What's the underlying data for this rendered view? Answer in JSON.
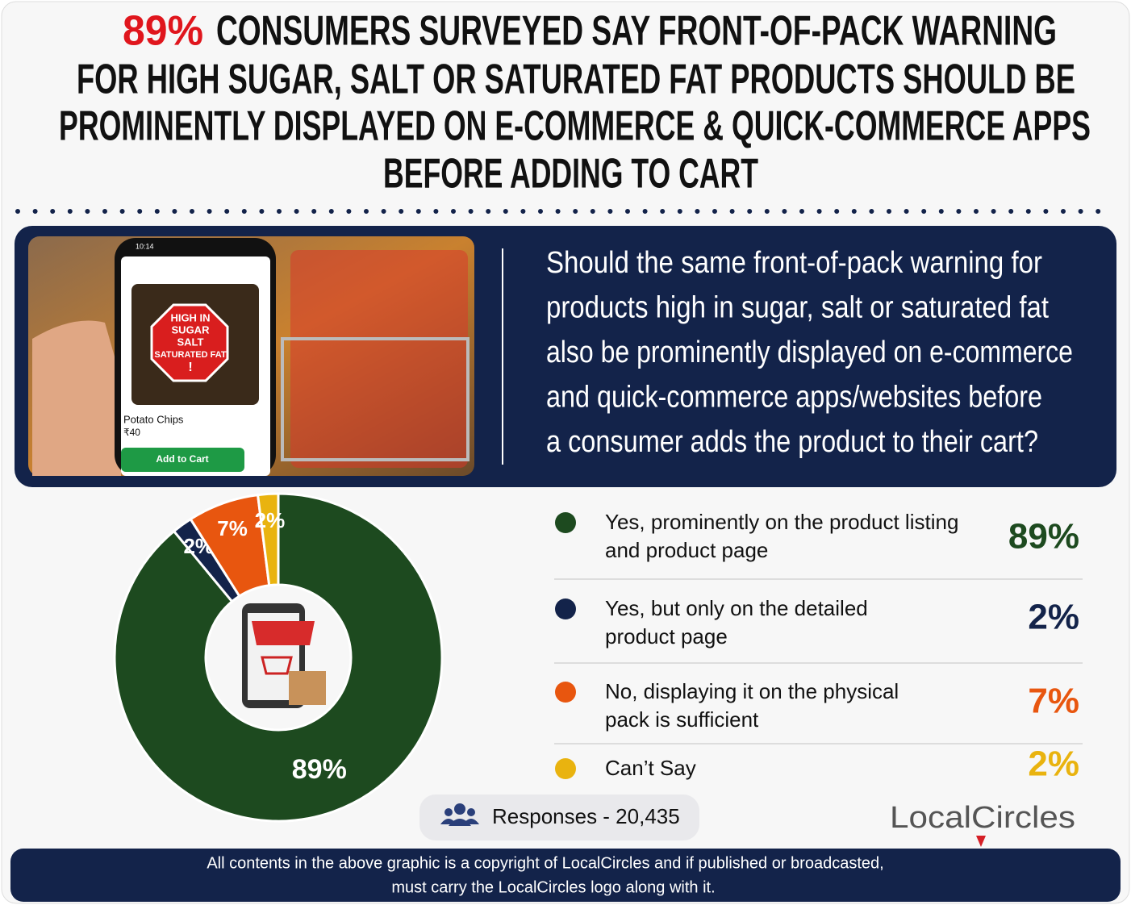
{
  "chart_data": {
    "type": "pie",
    "title_lead": "89%",
    "title_lines": [
      "CONSUMERS SURVEYED SAY FRONT-OF-PACK WARNING",
      "FOR HIGH SUGAR, SALT OR SATURATED FAT PRODUCTS SHOULD BE",
      "PROMINENTLY DISPLAYED ON E-COMMERCE & QUICK-COMMERCE APPS",
      "BEFORE ADDING TO CART"
    ],
    "question_lines": [
      "Should the same front-of-pack warning for",
      "products high in sugar, salt or saturated fat",
      "also be prominently displayed on e-commerce",
      "and quick-commerce apps/websites before",
      "a consumer adds the product to their cart?"
    ],
    "image_texts": {
      "warning": [
        "HIGH IN",
        "SUGAR",
        "SALT",
        "SATURATED FAT",
        "!"
      ],
      "product": "Potato Chips",
      "price": "₹40",
      "button": "Add to Cart",
      "status": "10:14"
    },
    "categories": [
      "Yes, prominently on the product listing\nand product page",
      "Yes, but only on the detailed\nproduct page",
      "No, displaying it on the physical\npack is sufficient",
      "Can’t Say"
    ],
    "values": [
      89,
      2,
      7,
      2
    ],
    "value_labels": [
      "89%",
      "2%",
      "7%",
      "2%"
    ],
    "colors": [
      "#1d4a1f",
      "#13234a",
      "#e8560f",
      "#e9b30f"
    ],
    "responses": "Responses - 20,435",
    "logo": "LocalCircles",
    "footer_lines": [
      "All contents in the above graphic is a copyright of LocalCircles and if published or broadcasted,",
      "must carry the LocalCircles logo along with it."
    ]
  }
}
